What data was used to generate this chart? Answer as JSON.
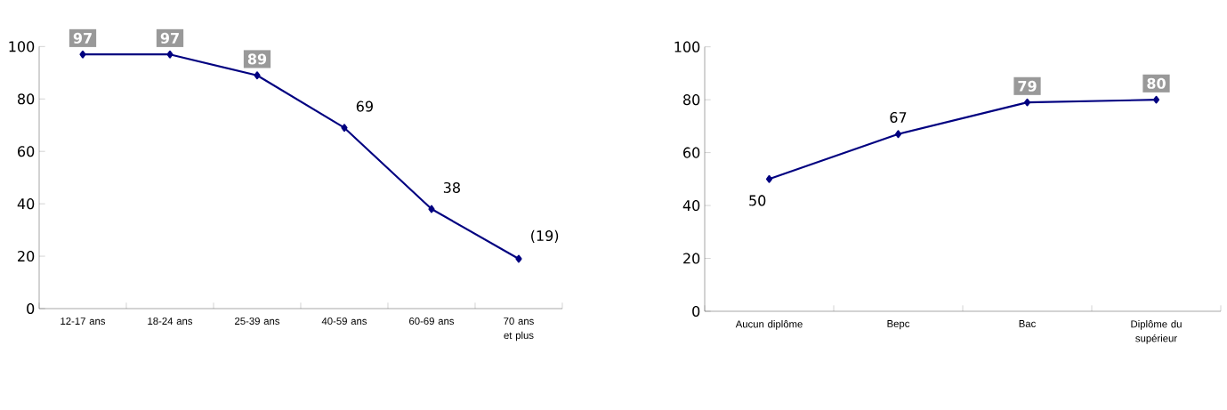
{
  "chart_data": [
    {
      "type": "line",
      "categories": [
        "12-17 ans",
        "18-24 ans",
        "25-39 ans",
        "40-59 ans",
        "60-69 ans",
        "70 ans et plus"
      ],
      "series": [
        {
          "color": "#000080",
          "values": [
            97,
            97,
            89,
            69,
            38,
            19
          ],
          "value_labels": [
            "97",
            "97",
            "89",
            "69",
            "38",
            "(19)"
          ]
        }
      ],
      "ylim": [
        0,
        100
      ],
      "yticks": [
        0,
        20,
        40,
        60,
        80,
        100
      ],
      "marker": "diamond",
      "grid": false
    },
    {
      "type": "line",
      "categories": [
        "Aucun diplôme",
        "Bepc",
        "Bac",
        "Diplôme du supérieur"
      ],
      "series": [
        {
          "color": "#000080",
          "values": [
            50,
            67,
            79,
            80
          ],
          "value_labels": [
            "50",
            "67",
            "79",
            "80"
          ]
        }
      ],
      "ylim": [
        0,
        100
      ],
      "yticks": [
        0,
        20,
        40,
        60,
        80,
        100
      ],
      "marker": "diamond",
      "grid": false
    }
  ]
}
